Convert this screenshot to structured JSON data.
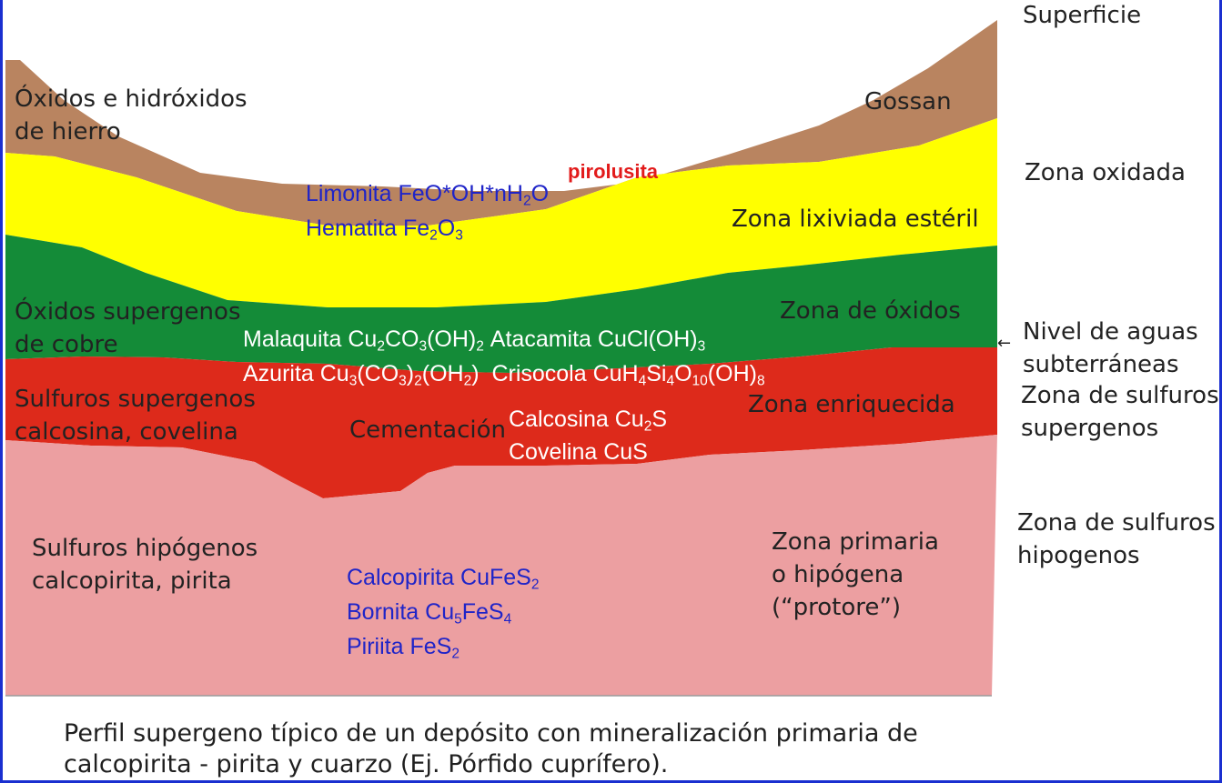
{
  "colors": {
    "gossan": "#b98460",
    "leached": "#ffff00",
    "oxides": "#148b38",
    "enriched": "#dd2a1b",
    "primary": "#ec9fa1",
    "frame": "#1a2fd0"
  },
  "layers": {
    "gossan": {
      "left_label_1": "Óxidos e hidróxidos",
      "left_label_2": "de hierro",
      "right_label": "Gossan"
    },
    "leached": {
      "limonita": {
        "name": "Limonita FeO*OH*nH",
        "sub": "2",
        "tail": "O"
      },
      "hematita": {
        "name": "Hematita Fe",
        "sub1": "2",
        "mid": "O",
        "sub2": "3"
      },
      "pirolusita": "pirolusita",
      "right_label": "Zona lixiviada estéril"
    },
    "oxides": {
      "left_label_1": "Óxidos supergenos",
      "left_label_2": "de cobre",
      "right_label": "Zona de óxidos",
      "malaquita": {
        "a": "Malaquita Cu",
        "s1": "2",
        "b": "CO",
        "s2": "3",
        "c": "(OH)",
        "s3": "2"
      },
      "atacamita": {
        "a": "Atacamita CuCl(OH)",
        "s1": "3"
      },
      "azurita": {
        "a": "Azurita Cu",
        "s1": "3",
        "b": "(CO",
        "s2": "3",
        "c": ")",
        "s3": "2",
        "d": "(OH",
        "s4": "2",
        "e": ")"
      },
      "crisocola": {
        "a": "Crisocola CuH",
        "s1": "4",
        "b": "Si",
        "s2": "4",
        "c": "O",
        "s3": "10",
        "d": "(OH)",
        "s4": "8"
      }
    },
    "enriched": {
      "left_label_1": "Sulfuros supergenos",
      "left_label_2": "calcosina, covelina",
      "center_label": "Cementación",
      "calcosina": {
        "a": "Calcosina Cu",
        "s1": "2",
        "b": "S"
      },
      "covelina": "Covelina CuS",
      "right_label": "Zona enriquecida"
    },
    "primary": {
      "left_label_1": "Sulfuros hipógenos",
      "left_label_2": "calcopirita, pirita",
      "calcopirita": {
        "a": "Calcopirita CuFeS",
        "s1": "2"
      },
      "bornita": {
        "a": "Bornita Cu",
        "s1": "5",
        "b": "FeS",
        "s2": "4"
      },
      "piriita": {
        "a": "Piriita FeS",
        "s1": "2"
      },
      "right_label_1": "Zona primaria",
      "right_label_2": "o hipógena",
      "right_label_3": "(“protore”)"
    }
  },
  "side_labels": {
    "surface": "Superficie",
    "oxidized": "Zona oxidada",
    "water_table_1": "Nivel de aguas",
    "water_table_2": "subterráneas",
    "supergene_1": "Zona de sulfuros",
    "supergene_2": "supergenos",
    "hypogene_1": "Zona de sulfuros",
    "hypogene_2": "hipogenos",
    "arrow": "←"
  },
  "caption": {
    "line1": "Perfil supergeno típico de un depósito con mineralización primaria de",
    "line2": "calcopirita - pirita y cuarzo (Ej. Pórfido cuprífero)."
  }
}
